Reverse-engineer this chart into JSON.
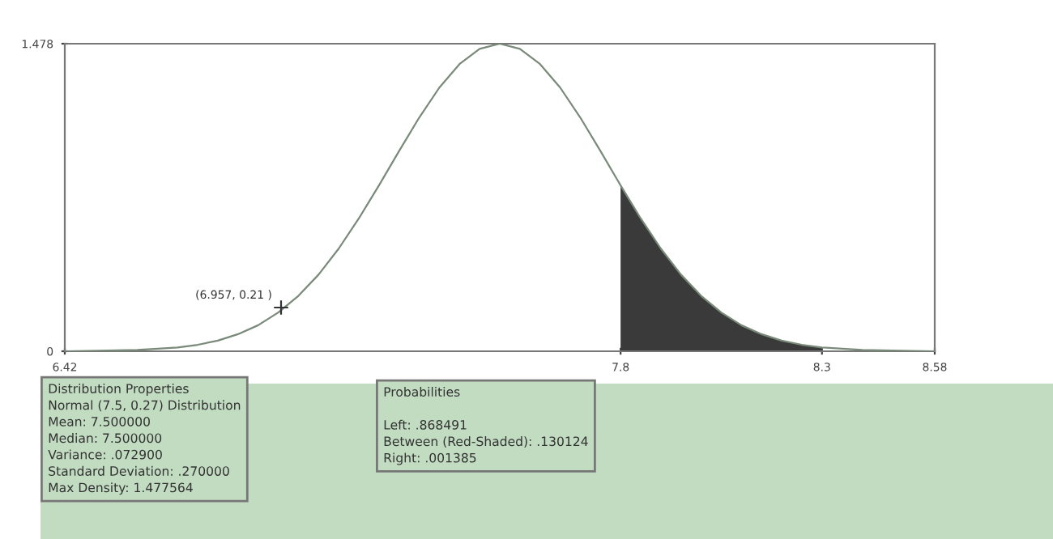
{
  "chart_data": {
    "type": "line",
    "series": [
      {
        "color": "#7a8a7a",
        "x": [
          6.42,
          6.5,
          6.6,
          6.7,
          6.75,
          6.8,
          6.85,
          6.9,
          6.95,
          7.0,
          7.05,
          7.1,
          7.15,
          7.2,
          7.25,
          7.3,
          7.35,
          7.4,
          7.45,
          7.5,
          7.55,
          7.6,
          7.65,
          7.7,
          7.75,
          7.8,
          7.85,
          7.9,
          7.95,
          8.0,
          8.05,
          8.1,
          8.15,
          8.2,
          8.25,
          8.3,
          8.4,
          8.5,
          8.58
        ],
        "values": [
          0.0,
          0.002,
          0.006,
          0.018,
          0.031,
          0.051,
          0.082,
          0.125,
          0.186,
          0.266,
          0.368,
          0.493,
          0.638,
          0.797,
          0.962,
          1.123,
          1.267,
          1.38,
          1.453,
          1.478,
          1.453,
          1.38,
          1.267,
          1.123,
          0.962,
          0.797,
          0.638,
          0.493,
          0.368,
          0.266,
          0.186,
          0.125,
          0.082,
          0.051,
          0.031,
          0.018,
          0.006,
          0.002,
          0.0
        ]
      },
      {
        "type": "area",
        "color": "#3a3a3a",
        "x": [
          7.8,
          7.85,
          7.9,
          7.95,
          8.0,
          8.05,
          8.1,
          8.15,
          8.2,
          8.25,
          8.3
        ],
        "values": [
          0.797,
          0.638,
          0.493,
          0.368,
          0.266,
          0.186,
          0.125,
          0.082,
          0.051,
          0.031,
          0.018
        ]
      },
      {
        "type": "scatter",
        "color": "#333333",
        "marker": "cross",
        "x": [
          6.957
        ],
        "values": [
          0.21
        ]
      }
    ],
    "xlim": [
      6.42,
      8.58
    ],
    "ylim": [
      0,
      1.478
    ],
    "xticks": [
      6.42,
      7.8,
      8.3,
      8.58
    ],
    "yticks": [
      0,
      1.478
    ],
    "grid": false,
    "annotations": [
      {
        "text": "(6.957, 0.21 )",
        "x": 6.957,
        "y": 0.21
      },
      "Distribution Properties\nNormal (7.5, 0.27) Distribution\nMean: 7.500000\nMedian: 7.500000\nVariance: .072900\nStandard Deviation: .270000\nMax Density: 1.477564",
      "Probabilities\n\nLeft: .868491\nBetween (Red-Shaded): .130124\nRight: .001385"
    ]
  }
}
